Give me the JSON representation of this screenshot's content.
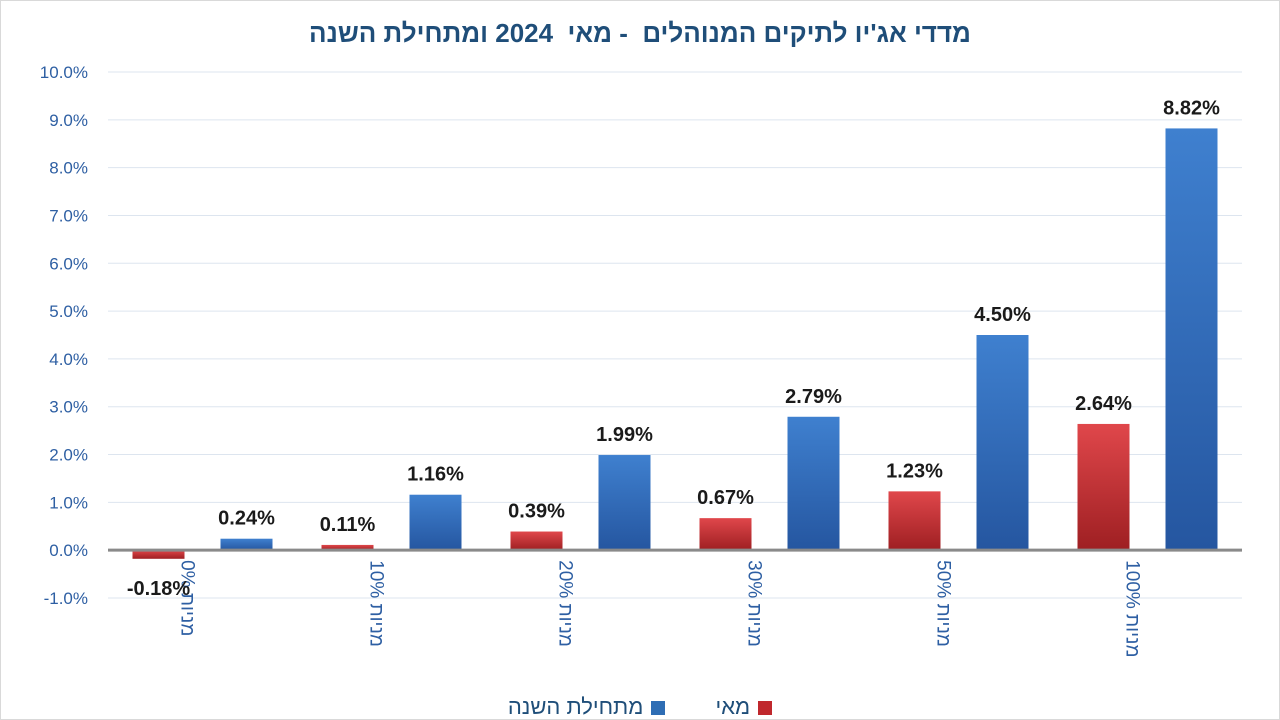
{
  "chart_data": {
    "type": "bar",
    "title": "מדדי אג'יו לתיקים המנוהלים  - מאי  2024 ומתחילת השנה",
    "categories": [
      "0% מניות",
      "10% מניות",
      "20% מניות",
      "30% מניות",
      "50% מניות",
      "100% מניות"
    ],
    "series": [
      {
        "name": "מאי",
        "color": "#c0282d",
        "values": [
          -0.18,
          0.11,
          0.39,
          0.67,
          1.23,
          2.64
        ],
        "labels": [
          "-0.18%",
          "0.11%",
          "0.39%",
          "0.67%",
          "1.23%",
          "2.64%"
        ]
      },
      {
        "name": "מתחילת השנה",
        "color": "#2e6db4",
        "values": [
          0.24,
          1.16,
          1.99,
          2.79,
          4.5,
          8.82
        ],
        "labels": [
          "0.24%",
          "1.16%",
          "1.99%",
          "2.79%",
          "4.50%",
          "8.82%"
        ]
      }
    ],
    "ylim": [
      -1.0,
      10.0
    ],
    "yticks": [
      {
        "value": 10,
        "label": "10.0%"
      },
      {
        "value": 9,
        "label": "9.0%"
      },
      {
        "value": 8,
        "label": "8.0%"
      },
      {
        "value": 7,
        "label": "7.0%"
      },
      {
        "value": 6,
        "label": "6.0%"
      },
      {
        "value": 5,
        "label": "5.0%"
      },
      {
        "value": 4,
        "label": "4.0%"
      },
      {
        "value": 3,
        "label": "3.0%"
      },
      {
        "value": 2,
        "label": "2.0%"
      },
      {
        "value": 1,
        "label": "1.0%"
      },
      {
        "value": 0,
        "label": "0.0%"
      },
      {
        "value": -1,
        "label": "-1.0%"
      }
    ],
    "grid": true,
    "legend_position": "bottom",
    "xlabel": "",
    "ylabel": ""
  }
}
